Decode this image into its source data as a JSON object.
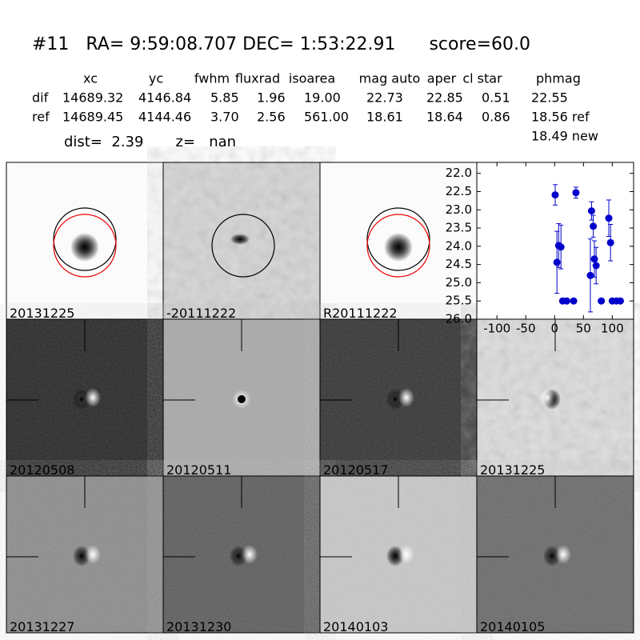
{
  "header": {
    "title": "#11   RA= 9:59:08.707 DEC= 1:53:22.91      score=60.0",
    "dist": "dist=  2.39       z=   nan"
  },
  "table": {
    "columns": [
      "xc",
      "yc",
      "fwhm",
      "fluxrad",
      "isoarea",
      "mag auto",
      "aper",
      "cl star",
      "phmag"
    ],
    "rows": [
      [
        "dif",
        "14689.32",
        "4146.84",
        "5.85",
        "1.96",
        "19.00",
        "22.73",
        "22.85",
        "0.51",
        "22.55"
      ],
      [
        "ref",
        "14689.45",
        "4144.46",
        "3.70",
        "2.56",
        "561.00",
        "18.61",
        "18.64",
        "0.86",
        "18.56 ref"
      ]
    ],
    "extra": "18.49 new"
  },
  "panels": [
    {
      "label": "20131225"
    },
    {
      "label": "-20111222"
    },
    {
      "label": "R20111222"
    },
    {
      "label": "20120508"
    },
    {
      "label": "20120511"
    },
    {
      "label": "20120517"
    },
    {
      "label": "20131225",
      "label_color": "#ff0000"
    },
    {
      "label": "20131227"
    },
    {
      "label": "20131230"
    },
    {
      "label": "20140103"
    },
    {
      "label": "20140105"
    }
  ],
  "chart_data": {
    "type": "scatter",
    "color": "#0000cc",
    "x": [
      1,
      4,
      7,
      11,
      14,
      21,
      33,
      37,
      62,
      64,
      67,
      69,
      72,
      81,
      94,
      97,
      100,
      107,
      114
    ],
    "values": [
      22.59,
      24.44,
      23.98,
      24.02,
      25.5,
      25.5,
      25.5,
      22.53,
      24.8,
      23.03,
      23.45,
      24.35,
      24.53,
      25.5,
      23.23,
      23.9,
      25.5,
      25.5,
      25.5
    ],
    "errors": [
      0.28,
      0.85,
      0.6,
      0.6,
      null,
      null,
      null,
      0.15,
      1.0,
      0.25,
      0.3,
      0.5,
      0.5,
      null,
      0.5,
      0.5,
      null,
      null,
      null
    ],
    "xlim": [
      -135,
      137
    ],
    "ylim": [
      26,
      21.7
    ],
    "xticks": [
      -100,
      -50,
      0,
      50,
      100
    ],
    "yticks": [
      {
        "value": 22,
        "label": "22.0"
      },
      {
        "value": 22.5,
        "label": "22.5"
      },
      {
        "value": 23,
        "label": "23.0"
      },
      {
        "value": 23.5,
        "label": "23.5"
      },
      {
        "value": 24,
        "label": "24.0"
      },
      {
        "value": 24.5,
        "label": "24.5"
      },
      {
        "value": 25,
        "label": "25.0"
      },
      {
        "value": 25.5,
        "label": "25.5"
      },
      {
        "value": 26,
        "label": "26.0"
      }
    ]
  }
}
